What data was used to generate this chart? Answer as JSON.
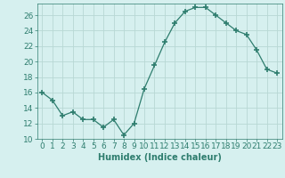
{
  "x": [
    0,
    1,
    2,
    3,
    4,
    5,
    6,
    7,
    8,
    9,
    10,
    11,
    12,
    13,
    14,
    15,
    16,
    17,
    18,
    19,
    20,
    21,
    22,
    23
  ],
  "y": [
    16,
    15,
    13,
    13.5,
    12.5,
    12.5,
    11.5,
    12.5,
    10.5,
    12,
    16.5,
    19.5,
    22.5,
    25,
    26.5,
    27,
    27,
    26,
    25,
    24,
    23.5,
    21.5,
    19,
    18.5
  ],
  "xlabel": "Humidex (Indice chaleur)",
  "ylim": [
    10,
    27.5
  ],
  "xlim": [
    -0.5,
    23.5
  ],
  "yticks": [
    10,
    12,
    14,
    16,
    18,
    20,
    22,
    24,
    26
  ],
  "xticks": [
    0,
    1,
    2,
    3,
    4,
    5,
    6,
    7,
    8,
    9,
    10,
    11,
    12,
    13,
    14,
    15,
    16,
    17,
    18,
    19,
    20,
    21,
    22,
    23
  ],
  "line_color": "#2e7d6e",
  "marker": "+",
  "marker_size": 4,
  "bg_color": "#d6f0ef",
  "grid_color": "#b8d8d4",
  "label_fontsize": 7,
  "tick_fontsize": 6.5
}
